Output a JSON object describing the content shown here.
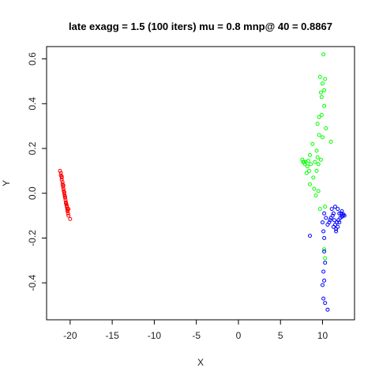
{
  "chart_data": {
    "type": "scatter",
    "title": "late exagg = 1.5 (100 iters) mu = 0.8 mnp@ 40 = 0.8867",
    "xlabel": "X",
    "ylabel": "Y",
    "xlim": [
      -22.8,
      13.8
    ],
    "ylim": [
      -0.565,
      0.655
    ],
    "x_ticks": [
      -20,
      -15,
      -10,
      -5,
      0,
      5,
      10
    ],
    "y_ticks": [
      -0.4,
      -0.2,
      0.0,
      0.2,
      0.4,
      0.6
    ],
    "x_tick_labels": [
      "-20",
      "-15",
      "-10",
      "-5",
      "0",
      "5",
      "10"
    ],
    "y_tick_labels": [
      "-0.4",
      "-0.2",
      "0.0",
      "0.2",
      "0.4",
      "0.6"
    ],
    "grid": false,
    "legend": "none",
    "point_style": "open-circle",
    "series": [
      {
        "color": "#ff0000",
        "points": [
          [
            -21.2,
            0.1
          ],
          [
            -21.1,
            0.09
          ],
          [
            -21.1,
            0.08
          ],
          [
            -21.0,
            0.07
          ],
          [
            -21.0,
            0.06
          ],
          [
            -20.9,
            0.05
          ],
          [
            -20.9,
            0.04
          ],
          [
            -20.85,
            0.03
          ],
          [
            -20.8,
            0.02
          ],
          [
            -20.75,
            0.01
          ],
          [
            -20.7,
            0.0
          ],
          [
            -20.65,
            -0.01
          ],
          [
            -20.6,
            -0.02
          ],
          [
            -20.55,
            -0.03
          ],
          [
            -20.5,
            -0.04
          ],
          [
            -20.45,
            -0.05
          ],
          [
            -20.4,
            -0.06
          ],
          [
            -20.35,
            -0.07
          ],
          [
            -20.3,
            -0.08
          ],
          [
            -20.25,
            -0.09
          ],
          [
            -20.2,
            -0.1
          ],
          [
            -20.0,
            -0.115
          ],
          [
            -20.8,
            0.035
          ],
          [
            -20.6,
            -0.015
          ],
          [
            -20.4,
            -0.055
          ],
          [
            -21.0,
            0.075
          ],
          [
            -20.7,
            0.005
          ],
          [
            -20.5,
            -0.045
          ],
          [
            -20.3,
            -0.075
          ],
          [
            -20.2,
            -0.07
          ]
        ]
      },
      {
        "color": "#00ff00",
        "points": [
          [
            10.1,
            0.62
          ],
          [
            9.7,
            0.52
          ],
          [
            10.3,
            0.51
          ],
          [
            10.0,
            0.49
          ],
          [
            9.8,
            0.45
          ],
          [
            10.2,
            0.46
          ],
          [
            9.9,
            0.43
          ],
          [
            10.2,
            0.39
          ],
          [
            9.6,
            0.34
          ],
          [
            9.9,
            0.35
          ],
          [
            9.4,
            0.31
          ],
          [
            10.4,
            0.29
          ],
          [
            9.6,
            0.26
          ],
          [
            10.0,
            0.25
          ],
          [
            11.0,
            0.23
          ],
          [
            8.8,
            0.22
          ],
          [
            9.3,
            0.19
          ],
          [
            8.5,
            0.17
          ],
          [
            9.4,
            0.16
          ],
          [
            9.8,
            0.15
          ],
          [
            7.6,
            0.15
          ],
          [
            7.8,
            0.14
          ],
          [
            8.0,
            0.14
          ],
          [
            7.9,
            0.13
          ],
          [
            8.2,
            0.12
          ],
          [
            8.6,
            0.13
          ],
          [
            9.1,
            0.14
          ],
          [
            9.5,
            0.13
          ],
          [
            8.4,
            0.1
          ],
          [
            8.1,
            0.09
          ],
          [
            9.3,
            0.1
          ],
          [
            8.9,
            0.07
          ],
          [
            8.5,
            0.04
          ],
          [
            9.0,
            0.02
          ],
          [
            9.5,
            0.01
          ],
          [
            9.2,
            -0.01
          ],
          [
            10.3,
            -0.06
          ],
          [
            10.2,
            -0.25
          ],
          [
            10.3,
            -0.29
          ],
          [
            9.7,
            -0.07
          ],
          [
            7.7,
            0.14
          ],
          [
            8.3,
            0.145
          ]
        ]
      },
      {
        "color": "#0000ff",
        "points": [
          [
            12.6,
            -0.1
          ],
          [
            12.4,
            -0.1
          ],
          [
            12.2,
            -0.09
          ],
          [
            12.1,
            -0.11
          ],
          [
            11.9,
            -0.12
          ],
          [
            11.7,
            -0.13
          ],
          [
            11.5,
            -0.14
          ],
          [
            11.3,
            -0.15
          ],
          [
            11.6,
            -0.16
          ],
          [
            11.8,
            -0.15
          ],
          [
            12.0,
            -0.13
          ],
          [
            11.4,
            -0.12
          ],
          [
            11.2,
            -0.1
          ],
          [
            11.0,
            -0.11
          ],
          [
            10.8,
            -0.13
          ],
          [
            11.1,
            -0.07
          ],
          [
            11.5,
            -0.06
          ],
          [
            11.8,
            -0.07
          ],
          [
            12.3,
            -0.08
          ],
          [
            12.0,
            -0.09
          ],
          [
            10.2,
            -0.09
          ],
          [
            10.6,
            -0.14
          ],
          [
            10.4,
            -0.11
          ],
          [
            10.1,
            -0.17
          ],
          [
            10.2,
            -0.2
          ],
          [
            8.5,
            -0.19
          ],
          [
            10.0,
            -0.13
          ],
          [
            10.2,
            -0.26
          ],
          [
            10.3,
            -0.31
          ],
          [
            10.1,
            -0.35
          ],
          [
            10.2,
            -0.39
          ],
          [
            10.0,
            -0.41
          ],
          [
            10.1,
            -0.47
          ],
          [
            10.3,
            -0.49
          ],
          [
            10.6,
            -0.52
          ],
          [
            12.5,
            -0.095
          ],
          [
            12.3,
            -0.105
          ],
          [
            11.6,
            -0.17
          ],
          [
            10.9,
            -0.12
          ],
          [
            11.3,
            -0.09
          ]
        ]
      }
    ]
  }
}
